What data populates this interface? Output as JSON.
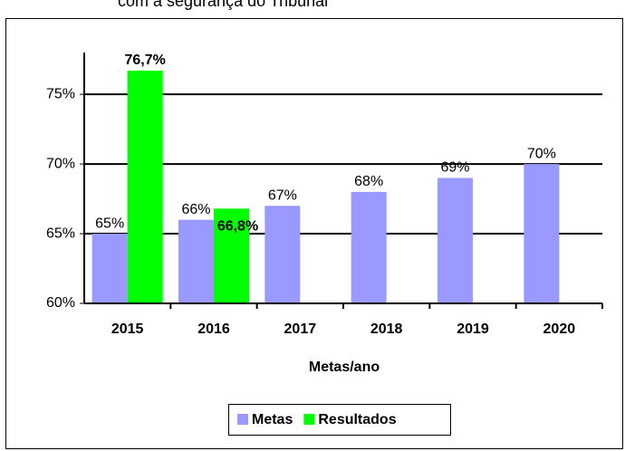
{
  "header_text": "com a segurança do Tribunal",
  "chart_data": {
    "type": "bar",
    "xlabel": "Metas/ano",
    "categories": [
      "2015",
      "2016",
      "2017",
      "2018",
      "2019",
      "2020"
    ],
    "series": [
      {
        "name": "Metas",
        "color": "#9999ff",
        "values": [
          65,
          66,
          67,
          68,
          69,
          70
        ],
        "value_labels": [
          "65%",
          "66%",
          "67%",
          "68%",
          "69%",
          "70%"
        ]
      },
      {
        "name": "Resultados",
        "color": "#00ff00",
        "values": [
          76.7,
          66.8,
          null,
          null,
          null,
          null
        ],
        "value_labels": [
          "76,7%",
          "66,8%",
          null,
          null,
          null,
          null
        ]
      }
    ],
    "ylim": [
      60,
      78
    ],
    "yticks": [
      {
        "value": 60,
        "label": "60%"
      },
      {
        "value": 65,
        "label": "65%"
      },
      {
        "value": 70,
        "label": "70%"
      },
      {
        "value": 75,
        "label": "75%"
      }
    ],
    "grid": true,
    "legend": "bottom"
  }
}
